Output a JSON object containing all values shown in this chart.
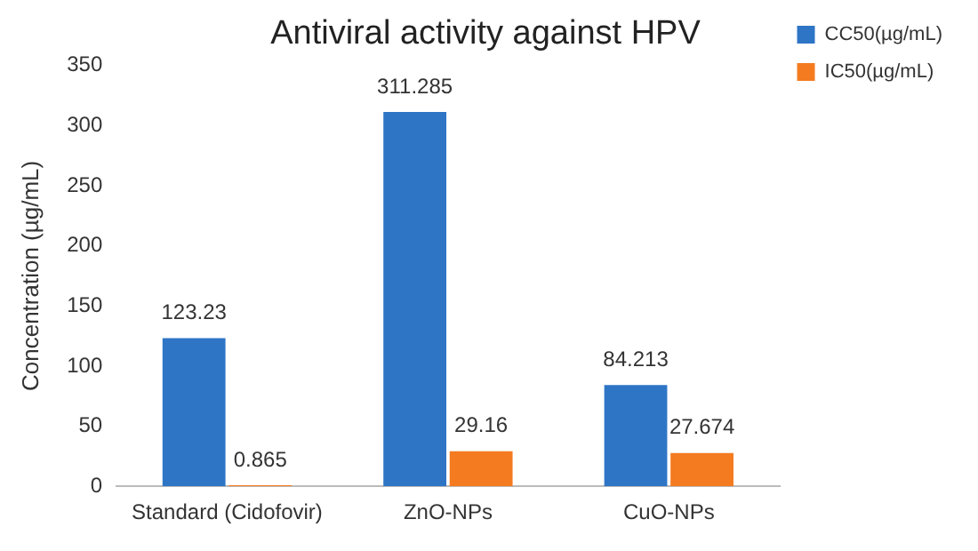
{
  "chart_data": {
    "type": "bar",
    "title": "Antiviral activity against HPV",
    "ylabel": "Concentration (µg/mL)",
    "categories": [
      "Standard (Cidofovir)",
      "ZnO-NPs",
      "CuO-NPs"
    ],
    "series": [
      {
        "name": "CC50(µg/mL)",
        "color": "#2e75c6",
        "values": [
          123.23,
          311.285,
          84.213
        ]
      },
      {
        "name": "IC50(µg/mL)",
        "color": "#f47b20",
        "values": [
          0.865,
          29.16,
          27.674
        ]
      }
    ],
    "ylim": [
      0,
      350
    ],
    "yticks": [
      0,
      50,
      100,
      150,
      200,
      250,
      300,
      350
    ],
    "grid": false,
    "legend": "top right",
    "data_labels": true
  }
}
